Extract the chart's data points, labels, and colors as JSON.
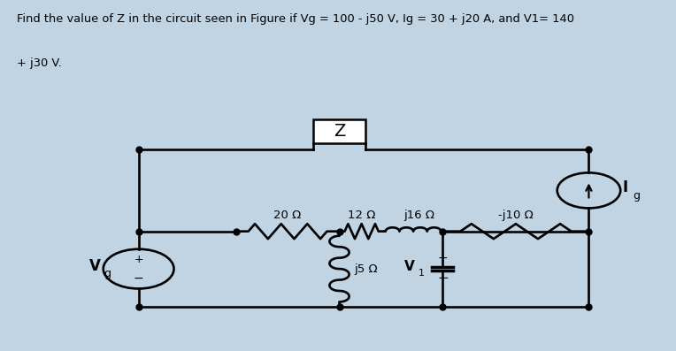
{
  "title_line1": "Find the value of Z in the circuit seen in Figure if Vg = 100 - j50 V, Ig = 30 + j20 A, and V1= 140",
  "title_line2": "+ j30 V.",
  "bg_outer": "#c0d4e4",
  "bg_inner": "#dce8f2",
  "lw": 1.9,
  "label_20": "20 Ω",
  "label_12": "12 Ω",
  "label_j16": "j16 Ω",
  "label_j5": "j5 Ω",
  "label_neg_j10": "-j10 Ω",
  "label_Z": "Z",
  "label_Vg_main": "V",
  "label_Vg_sub": "g",
  "label_V1_main": "V",
  "label_V1_sub": "1",
  "label_Ig_main": "I",
  "label_Ig_sub": "g",
  "plus": "+",
  "minus": "−",
  "dot_ms": 5,
  "xL": 1.5,
  "xM1": 3.1,
  "xM2": 4.8,
  "xM3": 6.5,
  "xR": 8.9,
  "yT": 5.6,
  "yMid": 3.2,
  "yB": 1.0,
  "vg_r": 0.58,
  "ig_r": 0.52,
  "v1_r": 0.28
}
